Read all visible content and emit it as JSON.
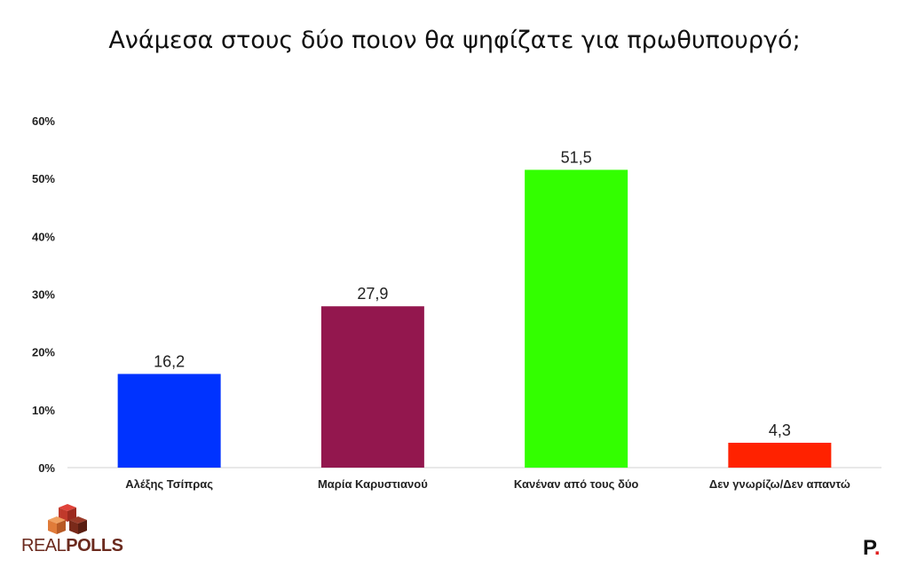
{
  "chart_data": {
    "type": "bar",
    "title": "Ανάμεσα στους δύο ποιον θα ψηφίζατε για πρωθυπουργό;",
    "categories": [
      "Αλέξης Τσίπρας",
      "Μαρία Καρυστιανού",
      "Κανέναν από τους δύο",
      "Δεν γνωρίζω/Δεν απαντώ"
    ],
    "values": [
      16.2,
      27.9,
      51.5,
      4.3
    ],
    "data_labels": [
      "16,2",
      "27,9",
      "51,5",
      "4,3"
    ],
    "colors": [
      "#0033ff",
      "#93174e",
      "#33ff00",
      "#ff2200"
    ],
    "ylim": [
      0,
      60
    ],
    "yticks": [
      0,
      10,
      20,
      30,
      40,
      50,
      60
    ],
    "ytick_labels": [
      "0%",
      "10%",
      "20%",
      "30%",
      "40%",
      "50%",
      "60%"
    ],
    "xlabel": "",
    "ylabel": "",
    "grid": false,
    "legend": "none"
  },
  "branding": {
    "logo_text_light": "REAL",
    "logo_text_bold": "POLLS",
    "logo_icon": "realpolls-cube-logo",
    "logo_colors": [
      "#c0392b",
      "#e07b39",
      "#7a2a1a"
    ],
    "mark_letter": "P",
    "mark_dot": "."
  }
}
